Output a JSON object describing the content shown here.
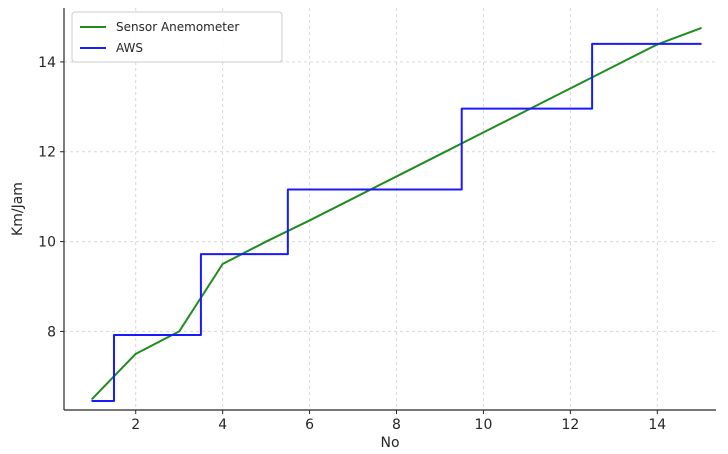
{
  "chart_data": {
    "type": "line",
    "title": "",
    "xlabel": "No",
    "ylabel": "Km/Jam",
    "xlim": [
      0.35,
      15.35
    ],
    "ylim": [
      6.25,
      15.2
    ],
    "xticks": [
      2,
      4,
      6,
      8,
      10,
      12,
      14
    ],
    "yticks": [
      8,
      10,
      12,
      14
    ],
    "grid": true,
    "legend_position": "top-left",
    "series": [
      {
        "name": "Sensor Anemometer",
        "color": "#1f8c1f",
        "style": "line",
        "x": [
          1,
          2,
          3,
          4,
          5,
          6,
          7,
          8,
          9,
          10,
          11,
          12,
          13,
          14,
          15
        ],
        "y": [
          6.5,
          7.5,
          8.0,
          9.5,
          10.0,
          10.47,
          10.96,
          11.45,
          11.94,
          12.43,
          12.92,
          13.41,
          13.9,
          14.39,
          14.75
        ]
      },
      {
        "name": "AWS",
        "color": "#1a1aff",
        "style": "step-mid",
        "x": [
          1,
          2,
          3,
          4,
          5,
          6,
          7,
          8,
          9,
          10,
          11,
          12,
          13,
          14,
          15
        ],
        "y": [
          6.45,
          7.92,
          7.92,
          9.72,
          9.72,
          11.16,
          11.16,
          11.16,
          11.16,
          12.96,
          12.96,
          12.96,
          14.4,
          14.4,
          14.4
        ]
      }
    ]
  }
}
